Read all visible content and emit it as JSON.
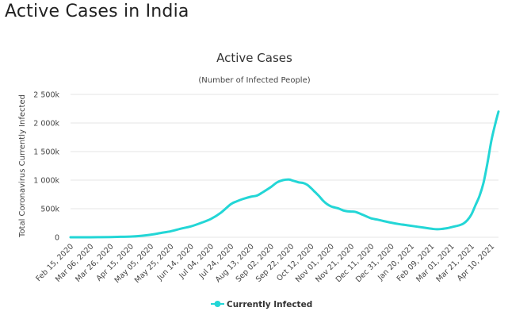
{
  "page": {
    "heading": "Active Cases in India"
  },
  "colors": {
    "series": "#23d6d6",
    "grid": "#e6e6e6",
    "text": "#333333"
  },
  "chart_data": {
    "type": "line",
    "title": "Active Cases",
    "subtitle": "(Number of Infected People)",
    "ylabel": "Total Coronavirus Currently Infected",
    "xlabel": "",
    "ylim": [
      0,
      2500000
    ],
    "yticks": [
      {
        "value": 0,
        "label": "0"
      },
      {
        "value": 500000,
        "label": "500k"
      },
      {
        "value": 1000000,
        "label": "1 000k"
      },
      {
        "value": 1500000,
        "label": "1 500k"
      },
      {
        "value": 2000000,
        "label": "2 000k"
      },
      {
        "value": 2500000,
        "label": "2 500k"
      }
    ],
    "xlim": [
      0,
      427
    ],
    "xticks": [
      {
        "value": 0,
        "label": "Feb 15, 2020"
      },
      {
        "value": 20,
        "label": "Mar 06, 2020"
      },
      {
        "value": 40,
        "label": "Mar 26, 2020"
      },
      {
        "value": 60,
        "label": "Apr 15, 2020"
      },
      {
        "value": 80,
        "label": "May 05, 2020"
      },
      {
        "value": 100,
        "label": "May 25, 2020"
      },
      {
        "value": 120,
        "label": "Jun 14, 2020"
      },
      {
        "value": 140,
        "label": "Jul 04, 2020"
      },
      {
        "value": 160,
        "label": "Jul 24, 2020"
      },
      {
        "value": 180,
        "label": "Aug 13, 2020"
      },
      {
        "value": 200,
        "label": "Sep 02, 2020"
      },
      {
        "value": 220,
        "label": "Sep 22, 2020"
      },
      {
        "value": 240,
        "label": "Oct 12, 2020"
      },
      {
        "value": 260,
        "label": "Nov 01, 2020"
      },
      {
        "value": 280,
        "label": "Nov 21, 2020"
      },
      {
        "value": 300,
        "label": "Dec 11, 2020"
      },
      {
        "value": 320,
        "label": "Dec 31, 2020"
      },
      {
        "value": 340,
        "label": "Jan 20, 2021"
      },
      {
        "value": 360,
        "label": "Feb 09, 2021"
      },
      {
        "value": 380,
        "label": "Mar 01, 2021"
      },
      {
        "value": 400,
        "label": "Mar 21, 2021"
      },
      {
        "value": 420,
        "label": "Apr 10, 2021"
      }
    ],
    "series": [
      {
        "name": "Currently Infected",
        "x": [
          0,
          20,
          40,
          50,
          60,
          70,
          80,
          90,
          100,
          110,
          120,
          130,
          140,
          150,
          160,
          166,
          172,
          180,
          186,
          192,
          200,
          206,
          212,
          218,
          222,
          225,
          228,
          232,
          236,
          240,
          244,
          248,
          252,
          256,
          260,
          264,
          268,
          272,
          276,
          280,
          284,
          288,
          292,
          296,
          300,
          306,
          312,
          320,
          328,
          336,
          344,
          352,
          358,
          362,
          366,
          370,
          376,
          382,
          388,
          392,
          396,
          400,
          404,
          408,
          412,
          416,
          420,
          424,
          427
        ],
        "y": [
          3,
          300,
          3000,
          8000,
          12000,
          25000,
          45000,
          75000,
          105000,
          150000,
          190000,
          250000,
          320000,
          430000,
          580000,
          630000,
          670000,
          710000,
          730000,
          790000,
          880000,
          960000,
          1000000,
          1010000,
          990000,
          975000,
          960000,
          950000,
          920000,
          860000,
          790000,
          720000,
          640000,
          580000,
          540000,
          520000,
          500000,
          470000,
          455000,
          450000,
          445000,
          420000,
          390000,
          360000,
          330000,
          310000,
          285000,
          255000,
          230000,
          210000,
          190000,
          170000,
          155000,
          145000,
          140000,
          145000,
          160000,
          185000,
          210000,
          240000,
          300000,
          400000,
          560000,
          720000,
          950000,
          1300000,
          1700000,
          2000000,
          2200000
        ]
      }
    ],
    "legend": {
      "position": "bottom-center",
      "entries": [
        "Currently Infected"
      ]
    },
    "grid": true
  }
}
